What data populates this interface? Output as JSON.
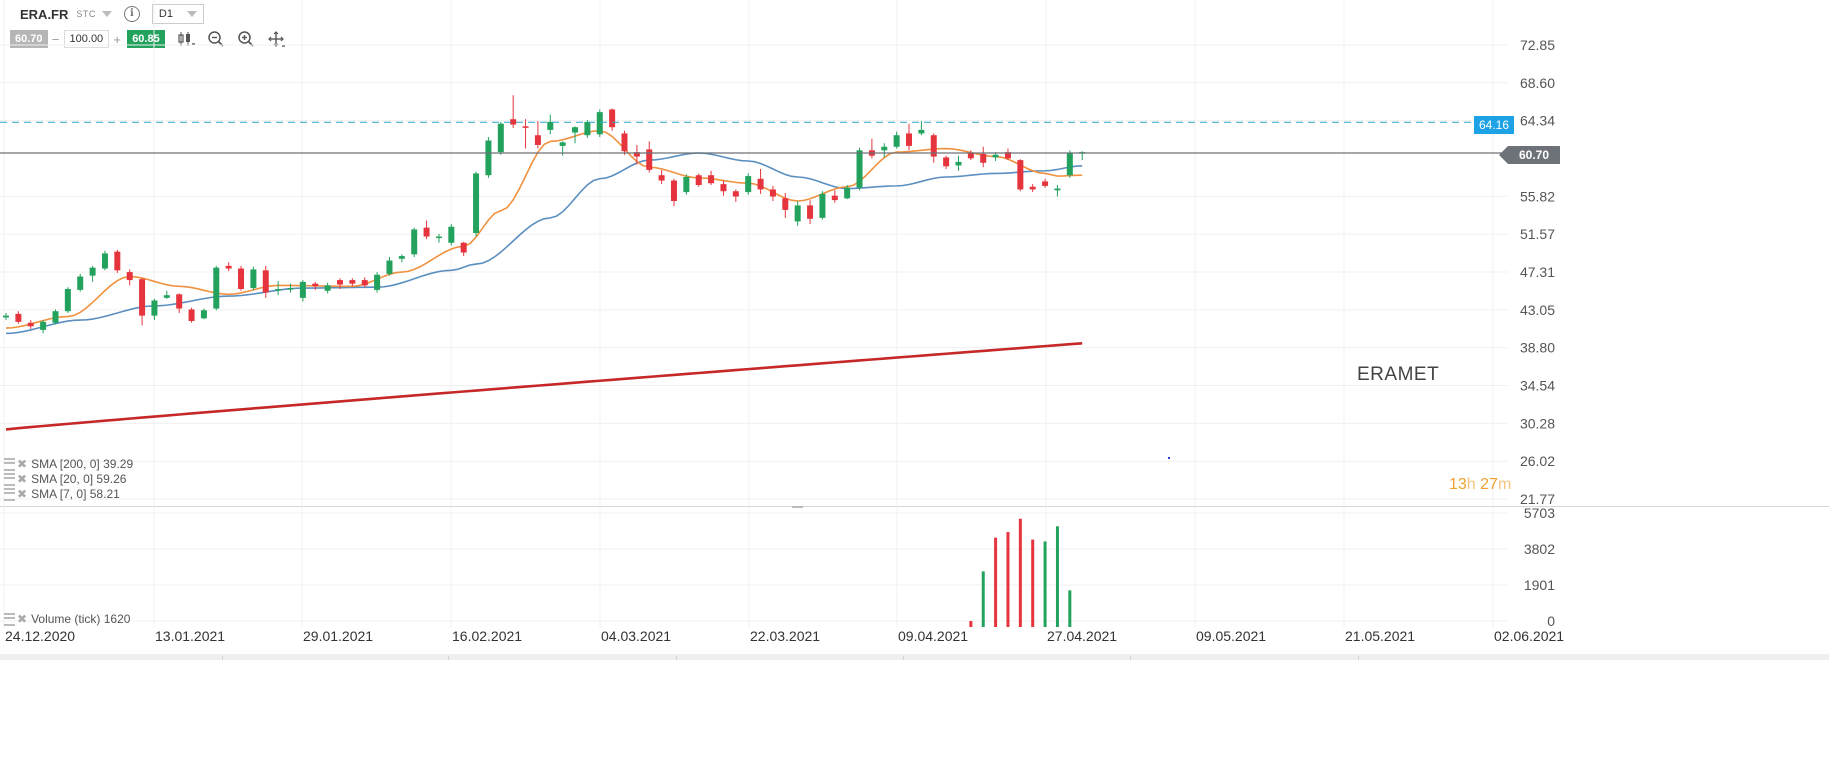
{
  "header": {
    "symbol": "ERA.FR",
    "symbol_type": "STC",
    "interval": "D1",
    "info_icon": "info-icon"
  },
  "trade": {
    "bid": "60.70",
    "volume": "100.00",
    "ask": "60.85",
    "decrease_symbol": "−",
    "increase_symbol": "+"
  },
  "tools": [
    "candles-chart-icon",
    "zoom-out-icon",
    "zoom-in-icon",
    "move-crosshair-icon"
  ],
  "price_axis": [
    "72.85",
    "68.60",
    "64.34",
    "60.70",
    "55.82",
    "51.57",
    "47.31",
    "43.05",
    "38.80",
    "34.54",
    "30.28",
    "26.02",
    "21.77"
  ],
  "volume_axis": [
    "5703",
    "3802",
    "1901",
    "0"
  ],
  "date_axis": [
    "24.12.2020",
    "13.01.2021",
    "29.01.2021",
    "16.02.2021",
    "04.03.2021",
    "22.03.2021",
    "09.04.2021",
    "27.04.2021",
    "09.05.2021",
    "21.05.2021",
    "02.06.2021"
  ],
  "current_price_tag": "60.70",
  "alert_price_tag": "64.16",
  "watermark": "ERAMET",
  "countdown": {
    "hours": "13",
    "hours_unit": "h",
    "minutes": "27",
    "minutes_unit": "m"
  },
  "indicators": {
    "sma200": "SMA [200, 0] 39.29",
    "sma20": "SMA [20, 0] 59.26",
    "sma7": "SMA [7, 0] 58.21",
    "volume": "Volume (tick) 1620"
  },
  "colors": {
    "up": "#22a25d",
    "down": "#e5343d",
    "sma200": "#c62828",
    "sma20": "#5b8fc0",
    "sma7": "#f0913f",
    "alert_line": "#2aa7c9",
    "current_line": "#6d7278"
  },
  "chart_data": {
    "type": "candlestick",
    "price_ylim": [
      21.77,
      72.85
    ],
    "volume_ylim": [
      0,
      5703
    ],
    "candles": [
      [
        42.2,
        42.7,
        41.9,
        42.4
      ],
      [
        42.6,
        42.9,
        41.5,
        41.7
      ],
      [
        41.6,
        41.9,
        40.9,
        41.2
      ],
      [
        40.8,
        41.9,
        40.4,
        41.7
      ],
      [
        41.6,
        43.1,
        41.4,
        42.9
      ],
      [
        42.9,
        45.6,
        42.7,
        45.4
      ],
      [
        45.3,
        47.1,
        45.1,
        46.8
      ],
      [
        46.9,
        48.0,
        46.2,
        47.8
      ],
      [
        47.7,
        49.7,
        47.5,
        49.4
      ],
      [
        49.6,
        49.8,
        47.2,
        47.5
      ],
      [
        47.3,
        47.6,
        45.8,
        46.4
      ],
      [
        46.5,
        46.6,
        41.3,
        42.4
      ],
      [
        42.4,
        44.3,
        41.9,
        44.1
      ],
      [
        44.4,
        45.2,
        44.3,
        44.7
      ],
      [
        44.8,
        44.9,
        42.7,
        43.2
      ],
      [
        43.1,
        43.3,
        41.6,
        41.8
      ],
      [
        42.1,
        43.2,
        42.0,
        43.0
      ],
      [
        43.2,
        48.0,
        43.0,
        47.8
      ],
      [
        48.0,
        48.4,
        47.4,
        47.7
      ],
      [
        47.7,
        48.0,
        45.2,
        45.4
      ],
      [
        45.5,
        47.9,
        45.3,
        47.6
      ],
      [
        47.5,
        48.0,
        44.4,
        45.0
      ],
      [
        45.3,
        46.3,
        44.7,
        45.4
      ],
      [
        45.4,
        46.0,
        45.0,
        45.5
      ],
      [
        44.4,
        46.4,
        44.0,
        46.2
      ],
      [
        46.0,
        46.2,
        45.3,
        45.7
      ],
      [
        45.2,
        46.1,
        44.9,
        45.8
      ],
      [
        46.4,
        46.6,
        45.4,
        45.9
      ],
      [
        46.4,
        46.6,
        45.7,
        46.0
      ],
      [
        46.4,
        46.7,
        45.6,
        45.8
      ],
      [
        45.3,
        47.3,
        45.0,
        47.0
      ],
      [
        47.1,
        49.0,
        46.9,
        48.6
      ],
      [
        48.8,
        49.3,
        48.4,
        49.1
      ],
      [
        49.3,
        52.3,
        49.0,
        52.1
      ],
      [
        52.3,
        53.1,
        51.0,
        51.3
      ],
      [
        51.2,
        51.6,
        50.6,
        51.3
      ],
      [
        50.6,
        52.7,
        50.3,
        52.4
      ],
      [
        50.6,
        50.7,
        49.1,
        49.5
      ],
      [
        51.7,
        58.6,
        51.3,
        58.4
      ],
      [
        58.2,
        62.5,
        57.9,
        62.1
      ],
      [
        60.8,
        64.2,
        60.5,
        64.0
      ],
      [
        64.5,
        67.2,
        63.5,
        63.9
      ],
      [
        63.7,
        64.5,
        61.2,
        63.6
      ],
      [
        62.7,
        64.3,
        61.2,
        61.6
      ],
      [
        63.3,
        65.0,
        62.8,
        64.2
      ],
      [
        61.5,
        62.0,
        60.4,
        61.9
      ],
      [
        63.0,
        63.7,
        61.8,
        63.6
      ],
      [
        62.7,
        64.4,
        62.4,
        64.2
      ],
      [
        62.8,
        65.6,
        62.5,
        65.3
      ],
      [
        65.6,
        65.7,
        63.2,
        63.6
      ],
      [
        62.9,
        63.2,
        60.5,
        60.9
      ],
      [
        60.8,
        61.6,
        59.4,
        60.3
      ],
      [
        61.1,
        62.0,
        58.5,
        58.8
      ],
      [
        58.2,
        58.8,
        57.2,
        57.6
      ],
      [
        57.6,
        57.8,
        54.7,
        55.3
      ],
      [
        56.3,
        58.3,
        56.0,
        58.0
      ],
      [
        58.2,
        58.4,
        56.9,
        57.1
      ],
      [
        58.2,
        58.7,
        57.1,
        57.3
      ],
      [
        57.2,
        57.6,
        55.9,
        56.4
      ],
      [
        56.4,
        56.6,
        55.2,
        55.8
      ],
      [
        56.3,
        58.4,
        56.0,
        58.1
      ],
      [
        57.8,
        58.9,
        56.1,
        56.6
      ],
      [
        56.6,
        57.0,
        55.3,
        55.8
      ],
      [
        55.6,
        56.2,
        53.4,
        54.3
      ],
      [
        53.0,
        55.3,
        52.5,
        54.8
      ],
      [
        54.8,
        55.4,
        52.7,
        53.3
      ],
      [
        53.4,
        56.4,
        53.2,
        56.1
      ],
      [
        55.9,
        56.5,
        55.1,
        55.4
      ],
      [
        55.6,
        57.1,
        55.5,
        56.8
      ],
      [
        56.8,
        61.3,
        56.5,
        61.0
      ],
      [
        61.0,
        62.3,
        60.1,
        60.4
      ],
      [
        61.0,
        61.8,
        60.2,
        61.4
      ],
      [
        61.4,
        63.1,
        61.2,
        62.7
      ],
      [
        62.9,
        64.0,
        61.0,
        61.5
      ],
      [
        62.9,
        64.3,
        62.7,
        63.3
      ],
      [
        62.7,
        62.9,
        59.6,
        60.3
      ],
      [
        60.2,
        60.4,
        58.9,
        59.2
      ],
      [
        59.3,
        60.4,
        58.7,
        59.7
      ],
      [
        60.7,
        61.0,
        59.9,
        60.1
      ],
      [
        60.6,
        61.4,
        59.1,
        59.6
      ],
      [
        60.2,
        60.8,
        59.8,
        60.5
      ],
      [
        60.8,
        61.2,
        59.9,
        60.1
      ],
      [
        59.9,
        60.0,
        56.4,
        56.6
      ],
      [
        56.9,
        57.2,
        56.3,
        56.6
      ],
      [
        57.5,
        57.8,
        56.8,
        57.0
      ],
      [
        56.5,
        57.1,
        55.8,
        56.7
      ],
      [
        58.2,
        61.0,
        57.9,
        60.7
      ],
      [
        60.7,
        60.9,
        59.9,
        60.8
      ]
    ],
    "volume_bars": [
      {
        "index": 78,
        "value": 0,
        "direction": "down"
      },
      {
        "index": 79,
        "value": 2620,
        "direction": "up"
      },
      {
        "index": 80,
        "value": 4400,
        "direction": "down"
      },
      {
        "index": 81,
        "value": 4700,
        "direction": "down"
      },
      {
        "index": 82,
        "value": 5400,
        "direction": "down"
      },
      {
        "index": 83,
        "value": 4300,
        "direction": "down"
      },
      {
        "index": 84,
        "value": 4200,
        "direction": "up"
      },
      {
        "index": 85,
        "value": 5000,
        "direction": "up"
      },
      {
        "index": 86,
        "value": 1620,
        "direction": "up"
      }
    ],
    "sma200": [
      29.6,
      39.29
    ],
    "sma20": [
      [
        0,
        40.4
      ],
      [
        6,
        41.9
      ],
      [
        12,
        43.5
      ],
      [
        18,
        44.6
      ],
      [
        24,
        45.5
      ],
      [
        30,
        45.6
      ],
      [
        36,
        47.5
      ],
      [
        38,
        48.2
      ],
      [
        44,
        53.4
      ],
      [
        48,
        57.8
      ],
      [
        52,
        59.9
      ],
      [
        56,
        60.7
      ],
      [
        60,
        59.8
      ],
      [
        64,
        58.0
      ],
      [
        68,
        56.7
      ],
      [
        72,
        57.0
      ],
      [
        76,
        58.0
      ],
      [
        80,
        58.4
      ],
      [
        84,
        58.7
      ],
      [
        87,
        59.26
      ]
    ],
    "sma7": [
      [
        0,
        41.0
      ],
      [
        5,
        42.3
      ],
      [
        10,
        46.8
      ],
      [
        14,
        45.7
      ],
      [
        18,
        44.8
      ],
      [
        22,
        45.8
      ],
      [
        28,
        45.7
      ],
      [
        32,
        47.3
      ],
      [
        37,
        50.2
      ],
      [
        40,
        54.2
      ],
      [
        44,
        62.0
      ],
      [
        48,
        63.2
      ],
      [
        52,
        59.1
      ],
      [
        56,
        57.9
      ],
      [
        60,
        57.3
      ],
      [
        64,
        55.3
      ],
      [
        68,
        56.9
      ],
      [
        72,
        60.8
      ],
      [
        76,
        61.2
      ],
      [
        80,
        60.3
      ],
      [
        84,
        58.4
      ],
      [
        85,
        58.1
      ],
      [
        87,
        58.21
      ]
    ],
    "alert_level": 64.16,
    "current_level": 60.7
  }
}
